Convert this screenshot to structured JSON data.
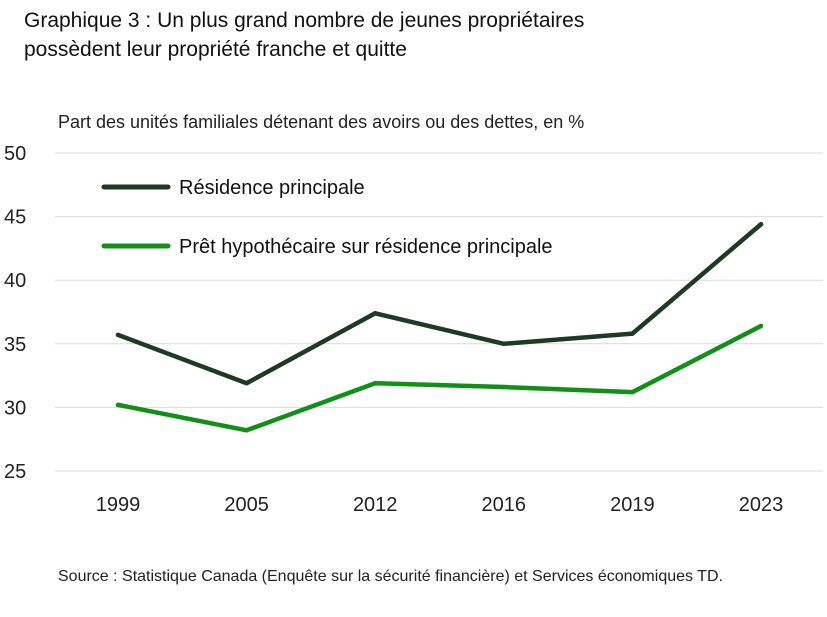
{
  "chart_data": {
    "type": "line",
    "title": "Graphique 3 : Un plus grand nombre de jeunes propriétaires possèdent leur propriété franche et quitte",
    "subtitle": "Part des unités familiales détenant des avoirs ou des dettes, en %",
    "categories": [
      "1999",
      "2005",
      "2012",
      "2016",
      "2019",
      "2023"
    ],
    "ylim": [
      25,
      50
    ],
    "yticks": [
      25,
      30,
      35,
      40,
      45,
      50
    ],
    "grid": true,
    "legend_position": "top-left",
    "series": [
      {
        "name": "Résidence principale",
        "color": "#1f3a23",
        "values": [
          35.7,
          31.9,
          37.4,
          35.0,
          35.8,
          44.4
        ]
      },
      {
        "name": "Prêt hypothécaire sur résidence principale",
        "color": "#119018",
        "values": [
          30.2,
          28.2,
          31.9,
          31.6,
          31.2,
          36.4
        ]
      }
    ],
    "source": "Source : Statistique Canada (Enquête sur la sécurité financière) et Services économiques TD."
  }
}
